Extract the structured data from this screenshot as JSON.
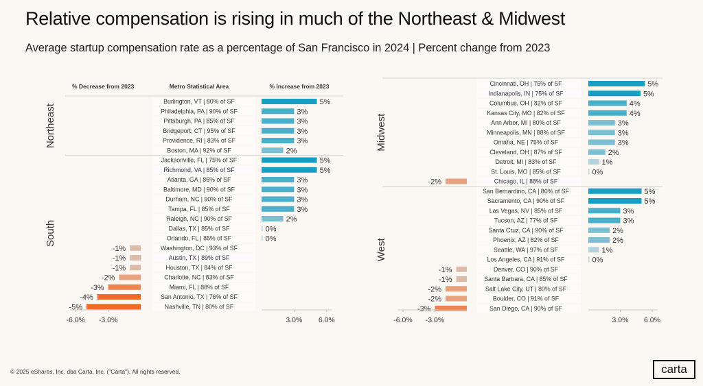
{
  "header": {
    "title": "Relative compensation is rising in much of the Northeast & Midwest",
    "subtitle": "Average startup compensation rate as a percentage of San Francisco in 2024 | Percent change from 2023"
  },
  "footer": {
    "copyright": "© 2025 eShares, Inc. dba Carta, Inc. (\"Carta\"). All rights reserved.",
    "logo": "carta"
  },
  "colors": {
    "pos_strong": "#169fc2",
    "pos_mid": "#4aafcb",
    "pos_light": "#7cbfd3",
    "pos_faint": "#b3d2dc",
    "neg_faint": "#dcbca9",
    "neg_light": "#e7a27f",
    "neg_mid": "#ec8350",
    "neg_strong": "#ef6a2b"
  },
  "chart_data": [
    {
      "type": "bar",
      "orientation": "horizontal-diverging",
      "panel": "left",
      "column_headers": {
        "decrease": "% Decrease from 2023",
        "metro": "Metro Statistical Area",
        "increase": "% Increase from 2023"
      },
      "xlim": [
        -6.5,
        6.5
      ],
      "neg_ticks": [
        "-6.0%",
        "-3.0%"
      ],
      "pos_ticks": [
        "3.0%",
        "6.0%"
      ],
      "groups": [
        {
          "region": "Northeast",
          "rows": [
            {
              "metro": "Burlington, VT | 80% of SF",
              "value": 5.1,
              "label": "5%"
            },
            {
              "metro": "Philadelphia, PA | 90% of SF",
              "value": 3.0,
              "label": "3%"
            },
            {
              "metro": "Pittsburgh, PA | 85% of SF",
              "value": 3.0,
              "label": "3%"
            },
            {
              "metro": "Bridgeport, CT | 95% of SF",
              "value": 3.0,
              "label": "3%"
            },
            {
              "metro": "Providence, RI | 83% of SF",
              "value": 3.0,
              "label": "3%"
            },
            {
              "metro": "Boston, MA | 92% of SF",
              "value": 2.0,
              "label": "2%"
            }
          ]
        },
        {
          "region": "South",
          "rows": [
            {
              "metro": "Jacksonville, FL | 75% of SF",
              "value": 5.1,
              "label": "5%"
            },
            {
              "metro": "Richmond, VA | 85% of SF",
              "value": 5.1,
              "label": "5%"
            },
            {
              "metro": "Atlanta, GA | 86% of SF",
              "value": 3.0,
              "label": "3%"
            },
            {
              "metro": "Baltimore, MD | 90% of SF",
              "value": 3.0,
              "label": "3%"
            },
            {
              "metro": "Durham, NC | 90% of SF",
              "value": 3.0,
              "label": "3%"
            },
            {
              "metro": "Tampa, FL | 85% of SF",
              "value": 3.0,
              "label": "3%"
            },
            {
              "metro": "Raleigh, NC | 90% of SF",
              "value": 2.0,
              "label": "2%"
            },
            {
              "metro": "Dallas, TX | 85% of SF",
              "value": 0.1,
              "label": "0%"
            },
            {
              "metro": "Orlando, FL | 85% of SF",
              "value": 0.1,
              "label": "0%"
            },
            {
              "metro": "Washington, DC | 93% of SF",
              "value": -1.0,
              "label": "-1%"
            },
            {
              "metro": "Austin, TX | 89% of SF",
              "value": -1.0,
              "label": "-1%"
            },
            {
              "metro": "Houston, TX | 84% of SF",
              "value": -1.0,
              "label": "-1%"
            },
            {
              "metro": "Charlotte, NC | 83% of SF",
              "value": -2.0,
              "label": "-2%"
            },
            {
              "metro": "Miami, FL | 88% of SF",
              "value": -3.0,
              "label": "-3%"
            },
            {
              "metro": "San Antonio, TX | 76% of SF",
              "value": -4.0,
              "label": "-4%"
            },
            {
              "metro": "Nashville, TN | 80% of SF",
              "value": -5.0,
              "label": "-5%"
            }
          ]
        }
      ]
    },
    {
      "type": "bar",
      "orientation": "horizontal-diverging",
      "panel": "right",
      "xlim": [
        -6.5,
        6.5
      ],
      "neg_ticks": [
        "-6.0%",
        "-3.0%"
      ],
      "pos_ticks": [
        "3.0%",
        "6.0%"
      ],
      "groups": [
        {
          "region": "Midwest",
          "rows": [
            {
              "metro": "Cincinnati, OH | 75% of SF",
              "value": 5.3,
              "label": "5%"
            },
            {
              "metro": "Indianapolis, IN | 75% of SF",
              "value": 4.9,
              "label": "5%"
            },
            {
              "metro": "Columbus, OH | 82% of SF",
              "value": 3.6,
              "label": "4%"
            },
            {
              "metro": "Kansas City, MO | 82% of SF",
              "value": 3.6,
              "label": "4%"
            },
            {
              "metro": "Ann Arbor, MI | 80% of SF",
              "value": 2.5,
              "label": "3%"
            },
            {
              "metro": "Minneapolis, MN | 88% of SF",
              "value": 2.5,
              "label": "3%"
            },
            {
              "metro": "Omaha, NE | 75% of SF",
              "value": 2.5,
              "label": "3%"
            },
            {
              "metro": "Cleveland, OH | 87% of SF",
              "value": 1.6,
              "label": "2%"
            },
            {
              "metro": "Detroit, MI | 83% of SF",
              "value": 1.0,
              "label": "1%"
            },
            {
              "metro": "St. Louis, MO | 85% of SF",
              "value": 0.1,
              "label": "0%"
            },
            {
              "metro": "Chicago, IL | 88% of SF",
              "value": -2.0,
              "label": "-2%"
            }
          ]
        },
        {
          "region": "West",
          "rows": [
            {
              "metro": "San Bernardino, CA | 80% of SF",
              "value": 5.0,
              "label": "5%"
            },
            {
              "metro": "Sacramento, CA | 90% of SF",
              "value": 5.0,
              "label": "5%"
            },
            {
              "metro": "Las Vegas, NV | 85% of SF",
              "value": 3.0,
              "label": "3%"
            },
            {
              "metro": "Tucson, AZ | 77% of SF",
              "value": 3.0,
              "label": "3%"
            },
            {
              "metro": "Santa Cruz, CA | 90% of SF",
              "value": 2.0,
              "label": "2%"
            },
            {
              "metro": "Phoenix, AZ | 82% of SF",
              "value": 2.0,
              "label": "2%"
            },
            {
              "metro": "Seattle, WA | 97% of SF",
              "value": 1.0,
              "label": "1%"
            },
            {
              "metro": "Los Angeles, CA | 91% of SF",
              "value": 0.1,
              "label": "0%"
            },
            {
              "metro": "Denver, CO | 90% of SF",
              "value": -1.0,
              "label": "-1%"
            },
            {
              "metro": "Santa Barbara, CA | 85% of SF",
              "value": -1.0,
              "label": "-1%"
            },
            {
              "metro": "Salt Lake City, UT | 80% of SF",
              "value": -2.0,
              "label": "-2%"
            },
            {
              "metro": "Boulder, CO | 91% of SF",
              "value": -2.0,
              "label": "-2%"
            },
            {
              "metro": "San Diego, CA | 90% of SF",
              "value": -3.0,
              "label": "-3%"
            }
          ]
        }
      ]
    }
  ]
}
